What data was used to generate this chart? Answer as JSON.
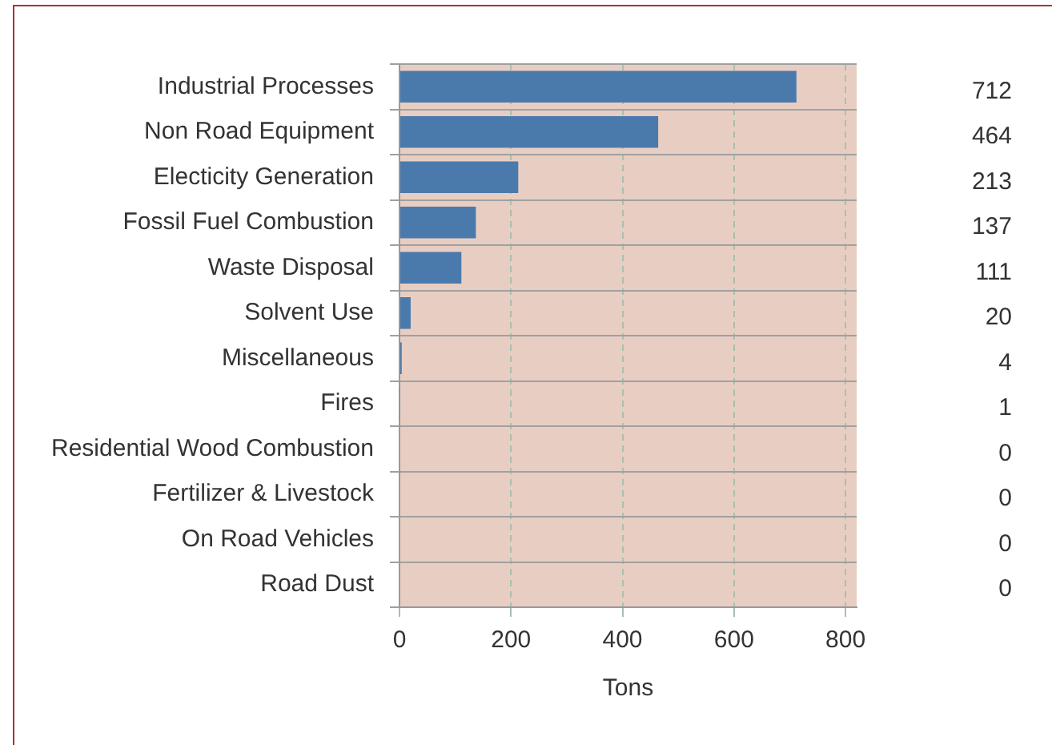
{
  "chart_data": {
    "type": "bar",
    "orientation": "horizontal",
    "xlabel": "Tons",
    "categories": [
      "Industrial Processes",
      "Non Road Equipment",
      "Electicity Generation",
      "Fossil Fuel Combustion",
      "Waste Disposal",
      "Solvent Use",
      "Miscellaneous",
      "Fires",
      "Residential Wood Combustion",
      "Fertilizer & Livestock",
      "On Road Vehicles",
      "Road Dust"
    ],
    "values": [
      712,
      464,
      213,
      137,
      111,
      20,
      4,
      1,
      0,
      0,
      0,
      0
    ],
    "color": "#4a7aab",
    "xlim": [
      0,
      820
    ],
    "xticks": [
      0,
      200,
      400,
      600,
      800
    ],
    "grid": true,
    "legend": false,
    "data_labels": true
  }
}
